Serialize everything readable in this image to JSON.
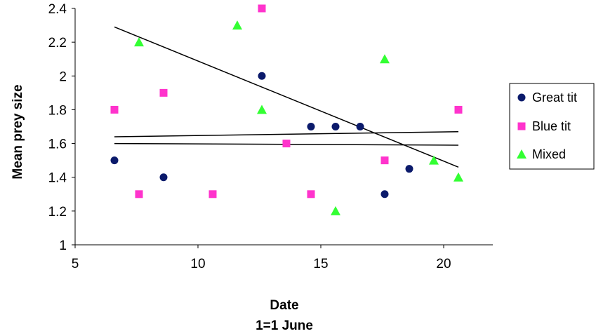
{
  "chart_data": {
    "type": "scatter",
    "title": "",
    "xlabel": "Date",
    "xlabel_line2": "1=1 June",
    "ylabel": "Mean prey size",
    "xlim": [
      5,
      22
    ],
    "ylim": [
      1,
      2.4
    ],
    "x_ticks": [
      5,
      10,
      15,
      20
    ],
    "y_ticks": [
      1,
      1.2,
      1.4,
      1.6,
      1.8,
      2,
      2.2,
      2.4
    ],
    "grid": false,
    "legend_position": "right",
    "series": [
      {
        "name": "Great tit",
        "marker": "circle",
        "color": "#0b1a6b",
        "points": [
          [
            6.6,
            1.5
          ],
          [
            8.6,
            1.4
          ],
          [
            12.6,
            2.0
          ],
          [
            14.6,
            1.7
          ],
          [
            15.6,
            1.7
          ],
          [
            16.6,
            1.7
          ],
          [
            17.6,
            1.3
          ],
          [
            18.6,
            1.45
          ]
        ],
        "trendline": [
          [
            6.6,
            1.64
          ],
          [
            20.6,
            1.67
          ]
        ]
      },
      {
        "name": "Blue tit",
        "marker": "square",
        "color": "#ff33cc",
        "points": [
          [
            6.6,
            1.8
          ],
          [
            7.6,
            1.3
          ],
          [
            8.6,
            1.9
          ],
          [
            10.6,
            1.3
          ],
          [
            12.6,
            2.4
          ],
          [
            13.6,
            1.6
          ],
          [
            14.6,
            1.3
          ],
          [
            17.6,
            1.5
          ],
          [
            20.6,
            1.8
          ]
        ],
        "trendline": [
          [
            6.6,
            1.6
          ],
          [
            20.6,
            1.59
          ]
        ]
      },
      {
        "name": "Mixed",
        "marker": "triangle",
        "color": "#33ff33",
        "points": [
          [
            7.6,
            2.2
          ],
          [
            11.6,
            2.3
          ],
          [
            12.6,
            1.8
          ],
          [
            15.6,
            1.2
          ],
          [
            17.6,
            2.1
          ],
          [
            19.6,
            1.5
          ],
          [
            20.6,
            1.4
          ]
        ],
        "trendline": [
          [
            6.6,
            2.29
          ],
          [
            20.6,
            1.46
          ]
        ]
      }
    ]
  }
}
